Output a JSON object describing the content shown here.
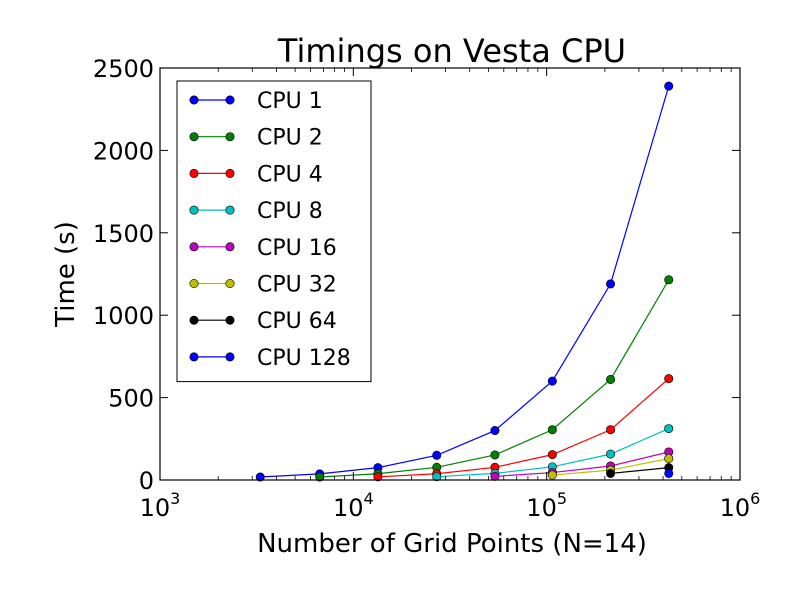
{
  "chart_data": {
    "type": "line",
    "title": "Timings on Vesta CPU",
    "xlabel": "Number of Grid Points (N=14)",
    "ylabel": "Time (s)",
    "xscale": "log",
    "xlim": [
      1000,
      1000000
    ],
    "ylim": [
      0,
      2500
    ],
    "x_ticks": [
      {
        "value": 1000,
        "base": "10",
        "exp": "3"
      },
      {
        "value": 10000,
        "base": "10",
        "exp": "4"
      },
      {
        "value": 100000,
        "base": "10",
        "exp": "5"
      },
      {
        "value": 1000000,
        "base": "10",
        "exp": "6"
      }
    ],
    "y_ticks": [
      0,
      500,
      1000,
      1500,
      2000,
      2500
    ],
    "grid": false,
    "legend_position": "top-left",
    "series": [
      {
        "name": "CPU 1",
        "color": "#0000ff",
        "x": [
          3300,
          6700,
          13400,
          27000,
          54000,
          107000,
          214000,
          428000
        ],
        "y": [
          18,
          37,
          75,
          150,
          300,
          600,
          1190,
          2390
        ]
      },
      {
        "name": "CPU 2",
        "color": "#008000",
        "x": [
          6700,
          13400,
          27000,
          54000,
          107000,
          214000,
          428000
        ],
        "y": [
          18,
          38,
          77,
          152,
          305,
          610,
          1215
        ]
      },
      {
        "name": "CPU 4",
        "color": "#ff0000",
        "x": [
          13400,
          27000,
          54000,
          107000,
          214000,
          428000
        ],
        "y": [
          19,
          38,
          77,
          154,
          305,
          615
        ]
      },
      {
        "name": "CPU 8",
        "color": "#00bfbf",
        "x": [
          27000,
          54000,
          107000,
          214000,
          428000
        ],
        "y": [
          20,
          40,
          80,
          157,
          312
        ]
      },
      {
        "name": "CPU 16",
        "color": "#bf00bf",
        "x": [
          54000,
          107000,
          214000,
          428000
        ],
        "y": [
          22,
          45,
          85,
          170
        ]
      },
      {
        "name": "CPU 32",
        "color": "#bfbf00",
        "x": [
          107000,
          214000,
          428000
        ],
        "y": [
          30,
          60,
          130
        ]
      },
      {
        "name": "CPU 64",
        "color": "#000000",
        "x": [
          214000,
          428000
        ],
        "y": [
          40,
          75
        ]
      },
      {
        "name": "CPU 128",
        "color": "#0000ff",
        "x": [
          428000
        ],
        "y": [
          40
        ]
      }
    ]
  }
}
